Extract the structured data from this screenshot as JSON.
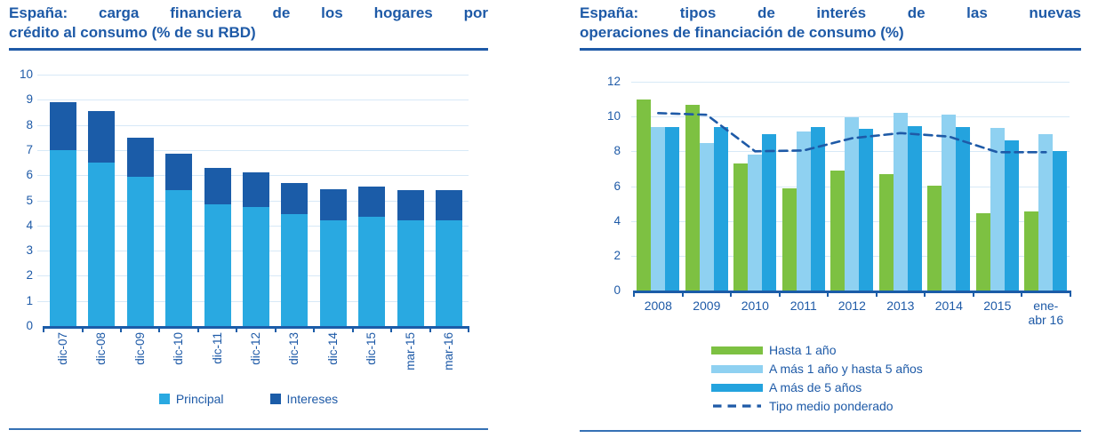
{
  "colors": {
    "accent_blue": "#1E5AA7",
    "principal_blue": "#29A9E1",
    "intereses_blue": "#1B5CA8",
    "green": "#7DC142",
    "pale_blue": "#8FD1F1",
    "mid_blue": "#24A3DE",
    "gridline": "#D7E9F7"
  },
  "chart_data": [
    {
      "type": "bar",
      "subtype": "stacked",
      "title": "España: carga financiera de los hogares por crédito al consumo (% de su RBD)",
      "title_lines": [
        "España: carga financiera de los hogares por",
        "crédito al consumo (% de su RBD)"
      ],
      "categories": [
        "dic-07",
        "dic-08",
        "dic-09",
        "dic-10",
        "dic-11",
        "dic-12",
        "dic-13",
        "dic-14",
        "dic-15",
        "mar-15",
        "mar-16"
      ],
      "series": [
        {
          "name": "Principal",
          "color": "#29A9E1",
          "values": [
            7.0,
            6.5,
            5.95,
            5.4,
            4.85,
            4.75,
            4.45,
            4.2,
            4.35,
            4.2,
            4.2
          ]
        },
        {
          "name": "Intereses",
          "color": "#1B5CA8",
          "values": [
            1.9,
            2.05,
            1.55,
            1.45,
            1.45,
            1.35,
            1.25,
            1.25,
            1.2,
            1.2,
            1.2
          ]
        }
      ],
      "totals": [
        8.9,
        8.55,
        7.5,
        6.85,
        6.3,
        6.1,
        5.7,
        5.45,
        5.55,
        5.4,
        5.4
      ],
      "xlabel": "",
      "ylabel": "",
      "ylim": [
        0,
        10
      ],
      "ytick_step": 1,
      "grid": true,
      "legend_position": "bottom-center"
    },
    {
      "type": "bar+line",
      "subtype": "grouped",
      "title": "España: tipos de interés de las nuevas operaciones de financiación de consumo (%)",
      "title_lines": [
        "España: tipos de interés de las nuevas",
        "operaciones de financiación de consumo (%)"
      ],
      "categories": [
        "2008",
        "2009",
        "2010",
        "2011",
        "2012",
        "2013",
        "2014",
        "2015",
        "ene-abr 16"
      ],
      "category_lines": [
        [
          "2008"
        ],
        [
          "2009"
        ],
        [
          "2010"
        ],
        [
          "2011"
        ],
        [
          "2012"
        ],
        [
          "2013"
        ],
        [
          "2014"
        ],
        [
          "2015"
        ],
        [
          "ene-",
          "abr 16"
        ]
      ],
      "series": [
        {
          "name": "Hasta 1 año",
          "color": "#7DC142",
          "values": [
            11.0,
            10.65,
            7.3,
            5.9,
            6.9,
            6.7,
            6.05,
            4.45,
            4.55
          ]
        },
        {
          "name": "A más 1 año y hasta 5 años",
          "color": "#8FD1F1",
          "values": [
            9.4,
            8.5,
            7.8,
            9.15,
            9.95,
            10.2,
            10.1,
            9.35,
            9.0
          ]
        },
        {
          "name": "A más de 5 años",
          "color": "#24A3DE",
          "values": [
            9.4,
            9.4,
            9.0,
            9.4,
            9.3,
            9.45,
            9.4,
            8.65,
            8.0
          ]
        }
      ],
      "line_series": {
        "name": "Tipo medio ponderado",
        "color": "#1E5AA7",
        "style": "dashed",
        "values": [
          10.2,
          10.1,
          8.0,
          8.05,
          8.75,
          9.05,
          8.85,
          7.95,
          7.95
        ]
      },
      "xlabel": "",
      "ylabel": "",
      "ylim": [
        0,
        12
      ],
      "ytick_step": 2,
      "grid": true,
      "legend_position": "bottom-left"
    }
  ]
}
